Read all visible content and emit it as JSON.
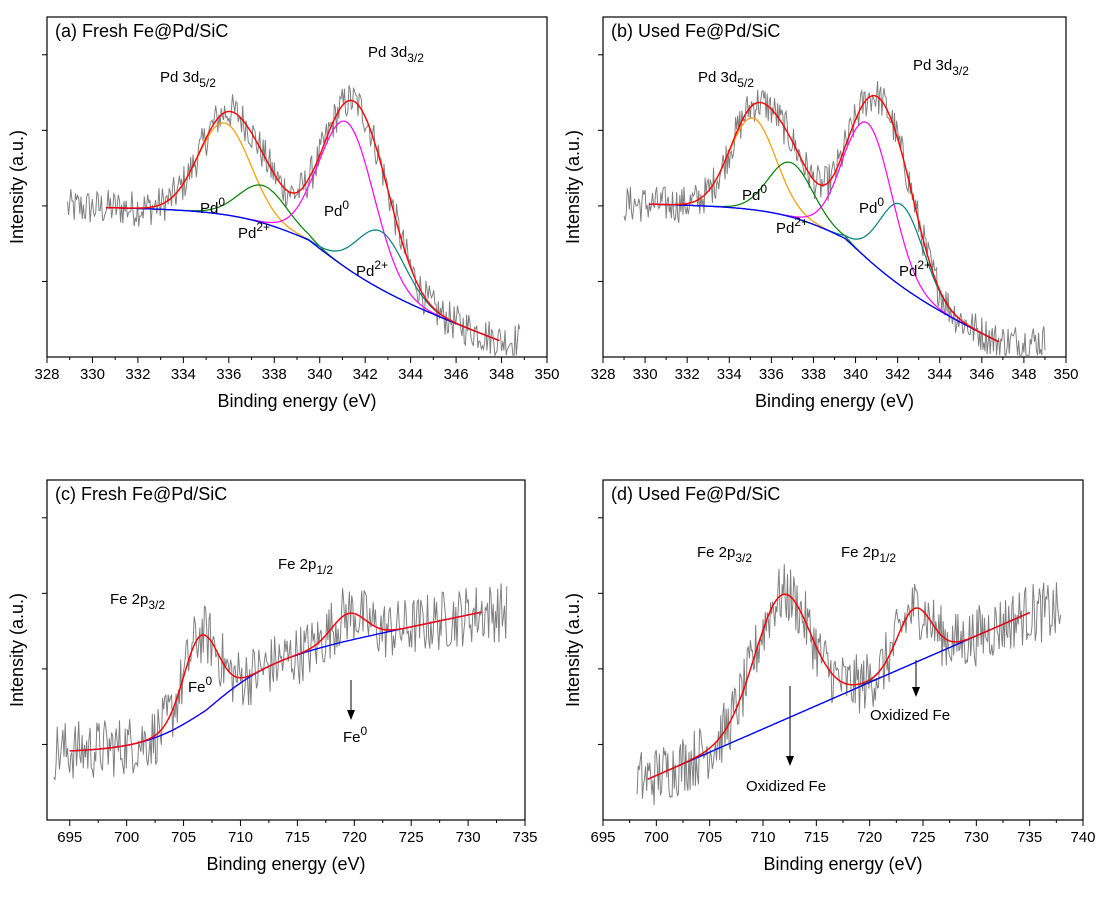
{
  "chart_data": [
    {
      "type": "line",
      "title": "(a) Fresh Fe@Pd/SiC",
      "xlabel": "Binding energy (eV)",
      "ylabel": "Intensity (a.u.)",
      "xlim": [
        328,
        350
      ],
      "ylim": [
        0,
        1
      ],
      "x_ticks": [
        "328",
        "330",
        "332",
        "334",
        "336",
        "338",
        "340",
        "342",
        "344",
        "346",
        "348",
        "350"
      ],
      "grid": false,
      "noisy_data": {
        "x_range": [
          328.9,
          348.8
        ],
        "color": "#808080"
      },
      "fit_x_range": [
        330.6,
        347.9
      ],
      "baseline": {
        "start": 0.44,
        "mid": 0.27,
        "end": 0.045,
        "step_center": 339.5,
        "step_width": 1.6
      },
      "peaks": [
        {
          "label": "Pd0",
          "center": 335.8,
          "height": 0.27,
          "width": 1.15,
          "color": "#ff9900"
        },
        {
          "label": "Pd2+",
          "center": 337.5,
          "height": 0.11,
          "width": 1.05,
          "color": "#008000"
        },
        {
          "label": "Pd0",
          "center": 341.2,
          "height": 0.43,
          "width": 1.2,
          "color": "#ff00ff"
        },
        {
          "label": "Pd2+",
          "center": 342.7,
          "height": 0.17,
          "width": 1.05,
          "color": "#008080"
        }
      ],
      "baseline_color": "#0000ff",
      "envelope_color": "#ff0000",
      "annotations": {
        "pd35_main": "Pd 3d",
        "pd35_sub": "5/2",
        "pd33_main": "Pd 3d",
        "pd33_sub": "3/2",
        "pd0a": "Pd",
        "pd0a_sup": "0",
        "pd2a": "Pd",
        "pd2a_sup": "2+",
        "pd0b": "Pd",
        "pd0b_sup": "0",
        "pd2b": "Pd",
        "pd2b_sup": "2+"
      }
    },
    {
      "type": "line",
      "title": "(b) Used Fe@Pd/SiC",
      "xlabel": "Binding energy (eV)",
      "ylabel": "Intensity (a.u.)",
      "xlim": [
        328,
        350
      ],
      "ylim": [
        0,
        1
      ],
      "x_ticks": [
        "328",
        "330",
        "332",
        "334",
        "336",
        "338",
        "340",
        "342",
        "344",
        "346",
        "348",
        "350"
      ],
      "grid": false,
      "noisy_data": {
        "x_range": [
          329.0,
          349.0
        ],
        "color": "#808080"
      },
      "fit_x_range": [
        330.2,
        346.8
      ],
      "baseline": {
        "start": 0.45,
        "mid": 0.27,
        "end": 0.04,
        "step_center": 339.5,
        "step_width": 1.6
      },
      "peaks": [
        {
          "label": "Pd0",
          "center": 335.1,
          "height": 0.27,
          "width": 1.1,
          "color": "#ff9900"
        },
        {
          "label": "Pd2+",
          "center": 336.9,
          "height": 0.16,
          "width": 1.05,
          "color": "#008000"
        },
        {
          "label": "Pd0",
          "center": 340.6,
          "height": 0.4,
          "width": 1.15,
          "color": "#ff00ff"
        },
        {
          "label": "Pd2+",
          "center": 342.2,
          "height": 0.24,
          "width": 1.05,
          "color": "#008080"
        }
      ],
      "baseline_color": "#0000ff",
      "envelope_color": "#ff0000",
      "annotations": {
        "pd35_main": "Pd 3d",
        "pd35_sub": "5/2",
        "pd33_main": "Pd 3d",
        "pd33_sub": "3/2",
        "pd0a": "Pd",
        "pd0a_sup": "0",
        "pd2a": "Pd",
        "pd2a_sup": "2+",
        "pd0b": "Pd",
        "pd0b_sup": "0",
        "pd2b": "Pd",
        "pd2b_sup": "2+"
      }
    },
    {
      "type": "line",
      "title": "(c) Fresh Fe@Pd/SiC",
      "xlabel": "Binding energy (eV)",
      "ylabel": "Intensity (a.u.)",
      "xlim": [
        693,
        735
      ],
      "ylim": [
        0,
        1
      ],
      "x_ticks": [
        "695",
        "700",
        "705",
        "710",
        "715",
        "720",
        "725",
        "730",
        "735"
      ],
      "grid": false,
      "noisy_data": {
        "x_range": [
          693.6,
          733.4
        ],
        "color": "#808080"
      },
      "fit_x_range": [
        695,
        731.2
      ],
      "baseline": {
        "start": 0.2,
        "mid": 0.44,
        "end": 0.61,
        "step_center": 707,
        "step_width": 2.8
      },
      "peaks": [
        {
          "label": "Fe0",
          "center": 706.5,
          "height": 0.23,
          "width": 1.5,
          "color": "#808080"
        },
        {
          "label": "Fe0",
          "center": 719.5,
          "height": 0.08,
          "width": 1.5,
          "color": "#ff00ff"
        }
      ],
      "baseline_color": "#0000ff",
      "envelope_color": "#ff0000",
      "annotations": {
        "fe32_main": "Fe 2p",
        "fe32_sub": "3/2",
        "fe12_main": "Fe 2p",
        "fe12_sub": "1/2",
        "fe0a": "Fe",
        "fe0a_sup": "0",
        "fe0b": "Fe",
        "fe0b_sup": "0"
      }
    },
    {
      "type": "line",
      "title": "(d) Used Fe@Pd/SiC",
      "xlabel": "Binding energy (eV)",
      "ylabel": "Intensity (a.u.)",
      "xlim": [
        695,
        740
      ],
      "ylim": [
        0,
        1
      ],
      "x_ticks": [
        "695",
        "700",
        "705",
        "710",
        "715",
        "720",
        "725",
        "730",
        "735",
        "740"
      ],
      "grid": false,
      "noisy_data": {
        "x_range": [
          698.2,
          737.9
        ],
        "color": "#808080"
      },
      "fit_x_range": [
        699.2,
        735
      ],
      "baseline": {
        "start": 0.12,
        "end": 0.61
      },
      "peaks": [
        {
          "label": "Oxidized Fe",
          "center": 711.8,
          "height": 0.37,
          "width": 2.6,
          "color": "#404040"
        },
        {
          "label": "Oxidized Fe",
          "center": 724.2,
          "height": 0.16,
          "width": 1.6,
          "color": "#008080"
        }
      ],
      "baseline_color": "#0000ff",
      "envelope_color": "#ff0000",
      "annotations": {
        "fe32_main": "Fe 2p",
        "fe32_sub": "3/2",
        "fe12_main": "Fe 2p",
        "fe12_sub": "1/2",
        "ox1": "Oxidized Fe",
        "ox2": "Oxidized Fe"
      }
    }
  ]
}
